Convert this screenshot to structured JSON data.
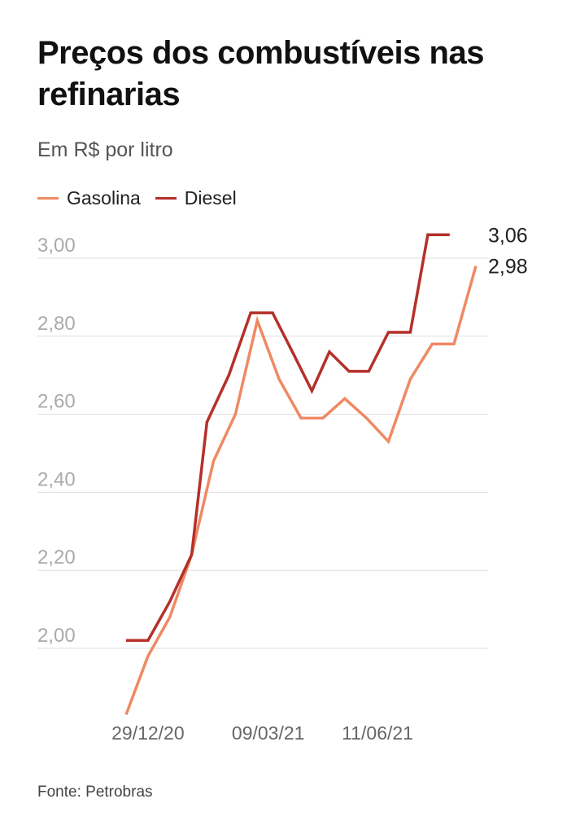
{
  "header": {
    "title": "Preços dos combustíveis nas refinarias",
    "subtitle": "Em R$ por litro"
  },
  "source": "Fonte: Petrobras",
  "colors": {
    "gasolina": "#ee8a63",
    "diesel": "#b5302a",
    "grid": "#dddddd",
    "tick_text": "#aaaaaa",
    "x_tick_text": "#666666",
    "end_label_text": "#222222"
  },
  "chart_data": {
    "type": "line",
    "title": "Preços dos combustíveis nas refinarias",
    "subtitle": "Em R$ por litro",
    "ylim": [
      1.85,
      3.06
    ],
    "grid": true,
    "legend_position": "top-left",
    "y_ticks": [
      {
        "value": 2.0,
        "label": "2,00"
      },
      {
        "value": 2.2,
        "label": "2,20"
      },
      {
        "value": 2.4,
        "label": "2,40"
      },
      {
        "value": 2.6,
        "label": "2,60"
      },
      {
        "value": 2.8,
        "label": "2,80"
      },
      {
        "value": 3.0,
        "label": "3,00"
      }
    ],
    "x_ticks": [
      {
        "index": 1,
        "label": "29/12/20"
      },
      {
        "index": 6.5,
        "label": "09/03/21"
      },
      {
        "index": 11.5,
        "label": "11/06/21"
      }
    ],
    "series": [
      {
        "name": "Gasolina",
        "color": "#ee8a63",
        "end_label": "2,98",
        "points": [
          [
            0,
            1.83
          ],
          [
            1,
            1.98
          ],
          [
            2,
            2.08
          ],
          [
            3,
            2.24
          ],
          [
            4,
            2.48
          ],
          [
            5,
            2.6
          ],
          [
            6,
            2.84
          ],
          [
            7,
            2.69
          ],
          [
            8,
            2.59
          ],
          [
            9,
            2.59
          ],
          [
            10,
            2.64
          ],
          [
            11,
            2.59
          ],
          [
            12,
            2.53
          ],
          [
            13,
            2.69
          ],
          [
            14,
            2.78
          ],
          [
            15,
            2.78
          ],
          [
            16,
            2.98
          ]
        ]
      },
      {
        "name": "Diesel",
        "color": "#b5302a",
        "end_label": "3,06",
        "points": [
          [
            0,
            2.02
          ],
          [
            1,
            2.02
          ],
          [
            2,
            2.12
          ],
          [
            3,
            2.24
          ],
          [
            3.7,
            2.58
          ],
          [
            4.7,
            2.7
          ],
          [
            5.7,
            2.86
          ],
          [
            6.7,
            2.86
          ],
          [
            7.7,
            2.75
          ],
          [
            8.5,
            2.66
          ],
          [
            9.3,
            2.76
          ],
          [
            10.2,
            2.71
          ],
          [
            11.1,
            2.71
          ],
          [
            12,
            2.81
          ],
          [
            13,
            2.81
          ],
          [
            13.8,
            3.06
          ],
          [
            14.8,
            3.06
          ]
        ]
      }
    ]
  }
}
